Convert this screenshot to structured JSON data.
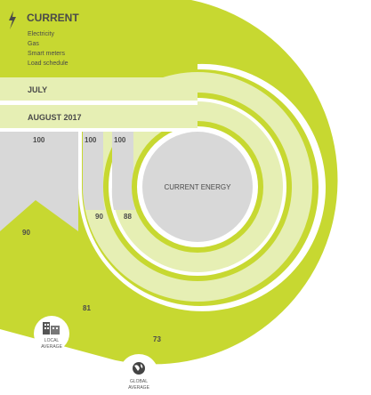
{
  "header": {
    "title": "CURRENT",
    "icon": "lightning-bolt-icon",
    "items": [
      "Electricity",
      "Gas",
      "Smart meters",
      "Load schedule"
    ]
  },
  "bands": {
    "july": "JULY",
    "august": "AUGUST 2017"
  },
  "center_label": "CURRENT ENERGY",
  "values": {
    "scale_outer": "100",
    "scale_middle": "100",
    "scale_inner": "100",
    "ring_outer": "90",
    "ring_middle": "90",
    "ring_inner": "88",
    "local_avg": "81",
    "global_avg": "73"
  },
  "markers": {
    "local": {
      "label_line1": "LOCAL",
      "label_line2": "AVERAGE",
      "icon": "building-icon"
    },
    "global": {
      "label_line1": "GLOBAL",
      "label_line2": "AVERAGE",
      "icon": "globe-icon"
    }
  },
  "colors": {
    "accent": "#c7d831",
    "band_light": "#e6efb4",
    "track_grey": "#d8d8d8",
    "label_dark": "#4a4a4a"
  }
}
